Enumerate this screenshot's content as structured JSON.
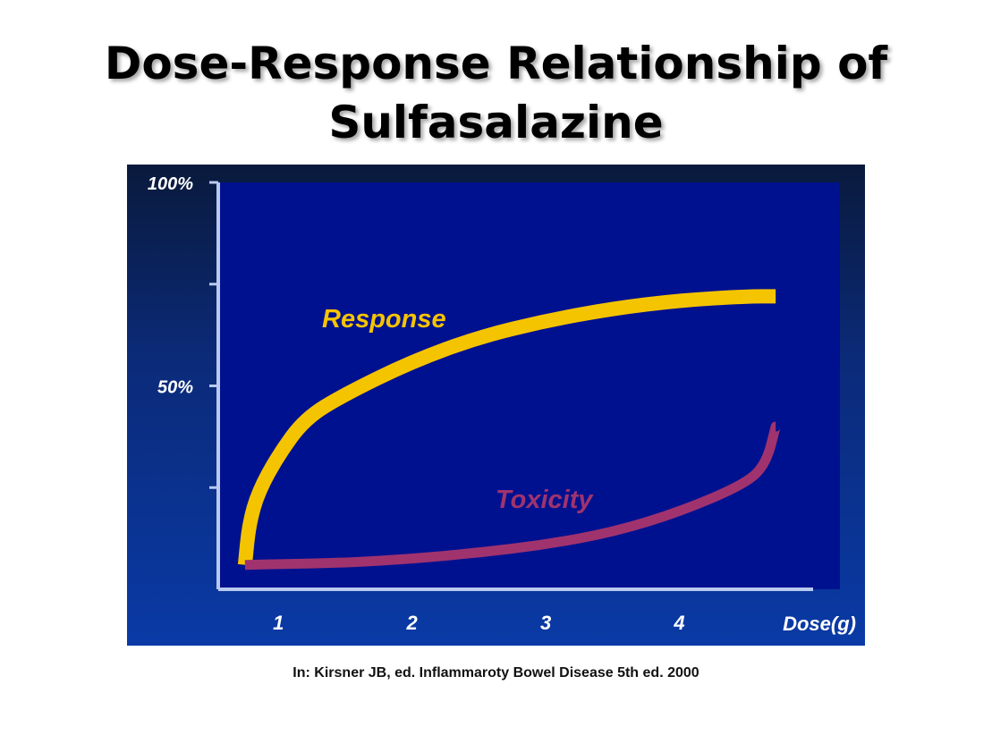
{
  "title_lines": [
    "Dose-Response Relationship of",
    "Sulfasalazine"
  ],
  "source": "In: Kirsner JB, ed. Inflammaroty Bowel Disease 5th ed. 2000",
  "colors": {
    "response": "#f5c400",
    "toxicity": "#a0336e",
    "plot_bg": "#00118f",
    "axis": "#b9c9ef"
  },
  "chart_data": {
    "type": "line",
    "title": "",
    "xlabel": "Dose(g)",
    "ylabel": "",
    "xlim": [
      0.55,
      5.0
    ],
    "ylim": [
      0,
      100
    ],
    "x_ticks": [
      1,
      2,
      3,
      4
    ],
    "y_tick_labels": [
      {
        "value": 100,
        "label": "100%"
      },
      {
        "value": 50,
        "label": "50%"
      }
    ],
    "y_minor_ticks": [
      25,
      75
    ],
    "grid": false,
    "legend": "none",
    "series": [
      {
        "name": "Response",
        "x": [
          0.75,
          0.78,
          0.85,
          1.0,
          1.2,
          1.5,
          2.0,
          2.5,
          3.0,
          3.5,
          4.0,
          4.5,
          4.72
        ],
        "y": [
          6,
          16,
          24,
          33,
          42,
          48,
          56,
          62,
          66,
          69,
          71,
          72,
          72
        ]
      },
      {
        "name": "Toxicity",
        "x": [
          0.75,
          1.0,
          1.5,
          2.0,
          2.5,
          3.0,
          3.5,
          4.0,
          4.5,
          4.65,
          4.72
        ],
        "y": [
          6,
          6.2,
          6.5,
          7.5,
          9,
          11,
          14,
          19,
          26,
          31,
          40
        ]
      }
    ]
  }
}
